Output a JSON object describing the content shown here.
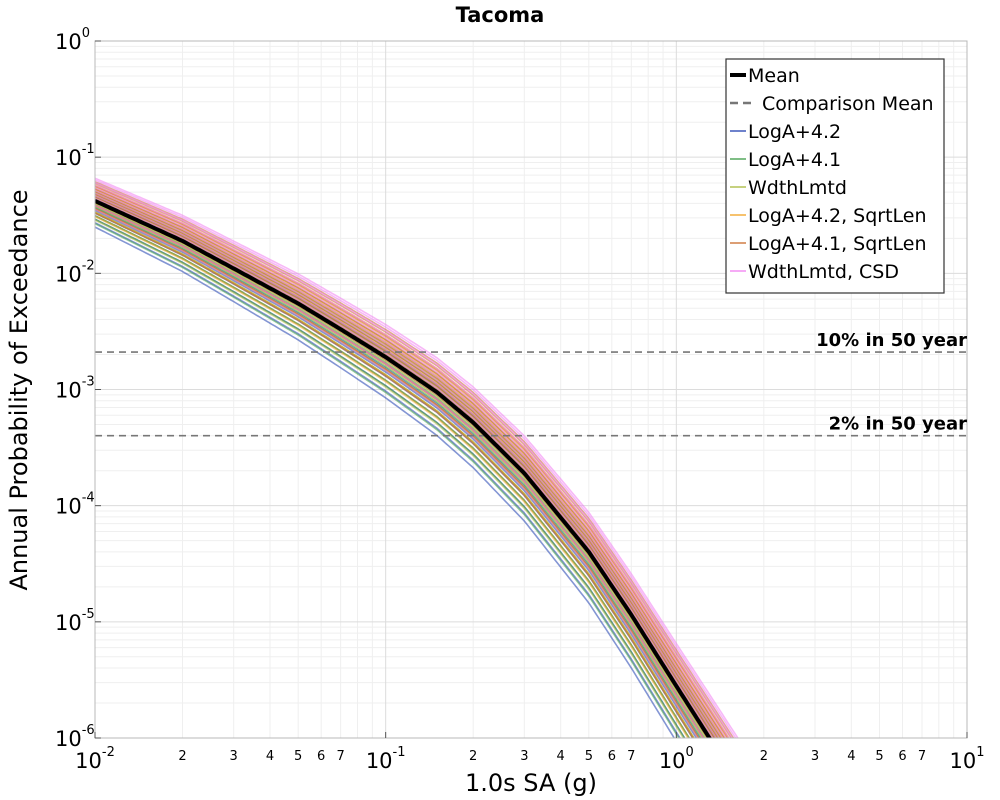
{
  "chart_data": {
    "type": "line",
    "title": "Tacoma",
    "xlabel": "1.0s SA (g)",
    "ylabel": "Annual Probability of Exceedance",
    "x_scale": "log",
    "y_scale": "log",
    "xlim": [
      0.01,
      10
    ],
    "ylim": [
      1e-06,
      1
    ],
    "grid": true,
    "legend_position": "top-right",
    "x_major_ticks": [
      {
        "base": "10",
        "exp": "-2"
      },
      {
        "base": "10",
        "exp": "-1"
      },
      {
        "base": "10",
        "exp": "0"
      },
      {
        "base": "10",
        "exp": "1"
      }
    ],
    "x_minor_tick_labels": [
      "2",
      "3",
      "4",
      "5",
      "6",
      "7"
    ],
    "y_major_ticks": [
      {
        "base": "10",
        "exp": "0"
      },
      {
        "base": "10",
        "exp": "-1"
      },
      {
        "base": "10",
        "exp": "-2"
      },
      {
        "base": "10",
        "exp": "-3"
      },
      {
        "base": "10",
        "exp": "-4"
      },
      {
        "base": "10",
        "exp": "-5"
      },
      {
        "base": "10",
        "exp": "-6"
      }
    ],
    "series": [
      {
        "name": "Mean",
        "color": "#000000",
        "style": "solid-thick",
        "x": [
          0.01,
          0.02,
          0.03,
          0.05,
          0.07,
          0.1,
          0.15,
          0.2,
          0.3,
          0.5,
          0.7,
          1.0,
          1.3
        ],
        "y": [
          0.042,
          0.019,
          0.011,
          0.0055,
          0.0033,
          0.0019,
          0.00095,
          0.00052,
          0.00019,
          4e-05,
          1.15e-05,
          2.8e-06,
          1e-06
        ]
      },
      {
        "name": "Comparison Mean",
        "color": "#777777",
        "style": "dashed",
        "x": [
          0.12
        ],
        "y": [
          0.0021
        ]
      },
      {
        "name": "LogA+4.2",
        "color": "#1f3fb0",
        "style": "thin"
      },
      {
        "name": "LogA+4.1",
        "color": "#3a9a45",
        "style": "thin"
      },
      {
        "name": "WdthLmtd",
        "color": "#a8b83a",
        "style": "thin"
      },
      {
        "name": "LogA+4.2, SqrtLen",
        "color": "#f0a020",
        "style": "thin"
      },
      {
        "name": "LogA+4.1, SqrtLen",
        "color": "#c86a2a",
        "style": "thin"
      },
      {
        "name": "WdthLmtd, CSD",
        "color": "#f07ef0",
        "style": "thin"
      }
    ],
    "reference_lines": [
      {
        "label": "10% in 50 year",
        "y": 0.0021
      },
      {
        "label": "2% in 50 year",
        "y": 0.0004
      }
    ]
  }
}
